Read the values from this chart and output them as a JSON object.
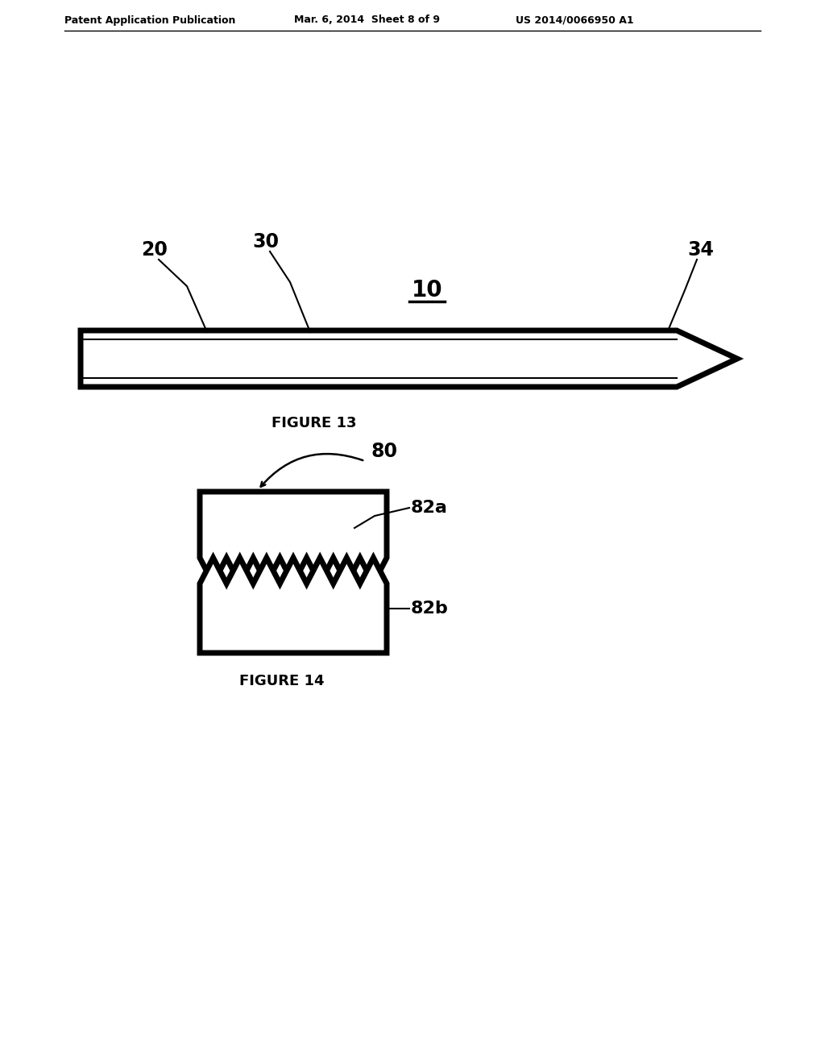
{
  "bg_color": "#ffffff",
  "line_color": "#000000",
  "header_left": "Patent Application Publication",
  "header_mid": "Mar. 6, 2014  Sheet 8 of 9",
  "header_right": "US 2014/0066950 A1",
  "fig13_label": "FIGURE 13",
  "fig14_label": "FIGURE 14",
  "ref_10": "10",
  "ref_20": "20",
  "ref_30": "30",
  "ref_34": "34",
  "ref_80": "80",
  "ref_82a": "82a",
  "ref_82b": "82b"
}
